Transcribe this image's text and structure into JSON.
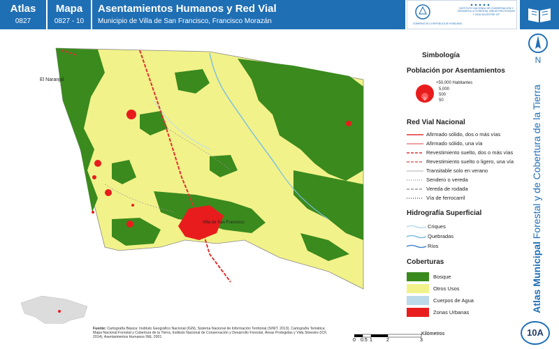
{
  "header": {
    "atlas_label": "Atlas",
    "atlas_code": "0827",
    "mapa_label": "Mapa",
    "mapa_code": "0827 - 10",
    "title": "Asentamientos Humanos y Red Vial",
    "subtitle": "Municipio de Villa de San Francisco, Francisco Morazán"
  },
  "logos": {
    "left_text": "GOBIERNO DE LA REPÚBLICA DE HONDURAS",
    "right_text": "INSTITUTO NACIONAL DE CONSERVACIÓN Y DESARROLLO FORESTAL ÁREAS PROTEGIDAS Y VIDA SILVESTRE ICF"
  },
  "north_label": "N",
  "sidebar_title_bold": "Atlas Municipal",
  "sidebar_title_rest": " Forestal y de Cobertura de la Tierra",
  "map_labels": {
    "naranjal": "El Naranjal",
    "town": "Villa de San Francisco"
  },
  "legend": {
    "title": "Simbología",
    "population": {
      "title": "Población por Asentamientos",
      "items": [
        "+50,000 Habitantes",
        "5,000",
        "500",
        "50"
      ]
    },
    "roads": {
      "title": "Red Vial Nacional",
      "items": [
        {
          "label": "Afirmado sólido, dos o más vías",
          "color": "#e03030",
          "style": "solid"
        },
        {
          "label": "Afirmado sólido, una vía",
          "color": "#e88080",
          "style": "solid"
        },
        {
          "label": "Revestimiento suelto, dos o más vías",
          "color": "#e03030",
          "style": "dash"
        },
        {
          "label": "Revestimiento suelto o ligero, una vía",
          "color": "#e06060",
          "style": "dash"
        },
        {
          "label": "Transitable solo en verano",
          "color": "#c8c8c8",
          "style": "solid"
        },
        {
          "label": "Sendero o vereda",
          "color": "#999999",
          "style": "dot"
        },
        {
          "label": "Vereda de rodada",
          "color": "#999999",
          "style": "dash"
        },
        {
          "label": "Vía de ferrocarril",
          "color": "#555555",
          "style": "dot"
        }
      ]
    },
    "hydro": {
      "title": "Hidrografía Superficial",
      "items": [
        {
          "label": "Criques",
          "color": "#b9dcef"
        },
        {
          "label": "Quebradas",
          "color": "#7cc0e0"
        },
        {
          "label": "Ríos",
          "color": "#4a8ccc"
        }
      ]
    },
    "cover": {
      "title": "Coberturas",
      "items": [
        {
          "label": "Bosque",
          "color": "#3a8a1e"
        },
        {
          "label": "Otros Usos",
          "color": "#f2f28a"
        },
        {
          "label": "Cuerpos de Agua",
          "color": "#bcd9ea"
        },
        {
          "label": "Zonas Urbanas",
          "color": "#e81c1c"
        }
      ]
    }
  },
  "sources": {
    "label": "Fuente:",
    "text": "Cartografía Básica: Instituto Geográfico Nacional (IGN), Sistema Nacional de Información Territorial (SINIT, 2013). Cartografía Temática: Mapa Nacional Forestal y Cobertura de la Tierra, Instituto Nacional de Conservación y Desarrollo Forestal, Áreas Protegidas y Vida Silvestre (ICF, 2014); Asentamientos Humanos INE, 2001"
  },
  "scale": {
    "ticks": [
      "0",
      "0.5",
      "1",
      "2",
      "3"
    ],
    "unit": "Kilómetros"
  },
  "badge": "10A",
  "colors": {
    "brand_blue": "#1f6fb5",
    "forest": "#3a8a1e",
    "other_uses": "#f2f28a",
    "urban": "#e81c1c"
  }
}
